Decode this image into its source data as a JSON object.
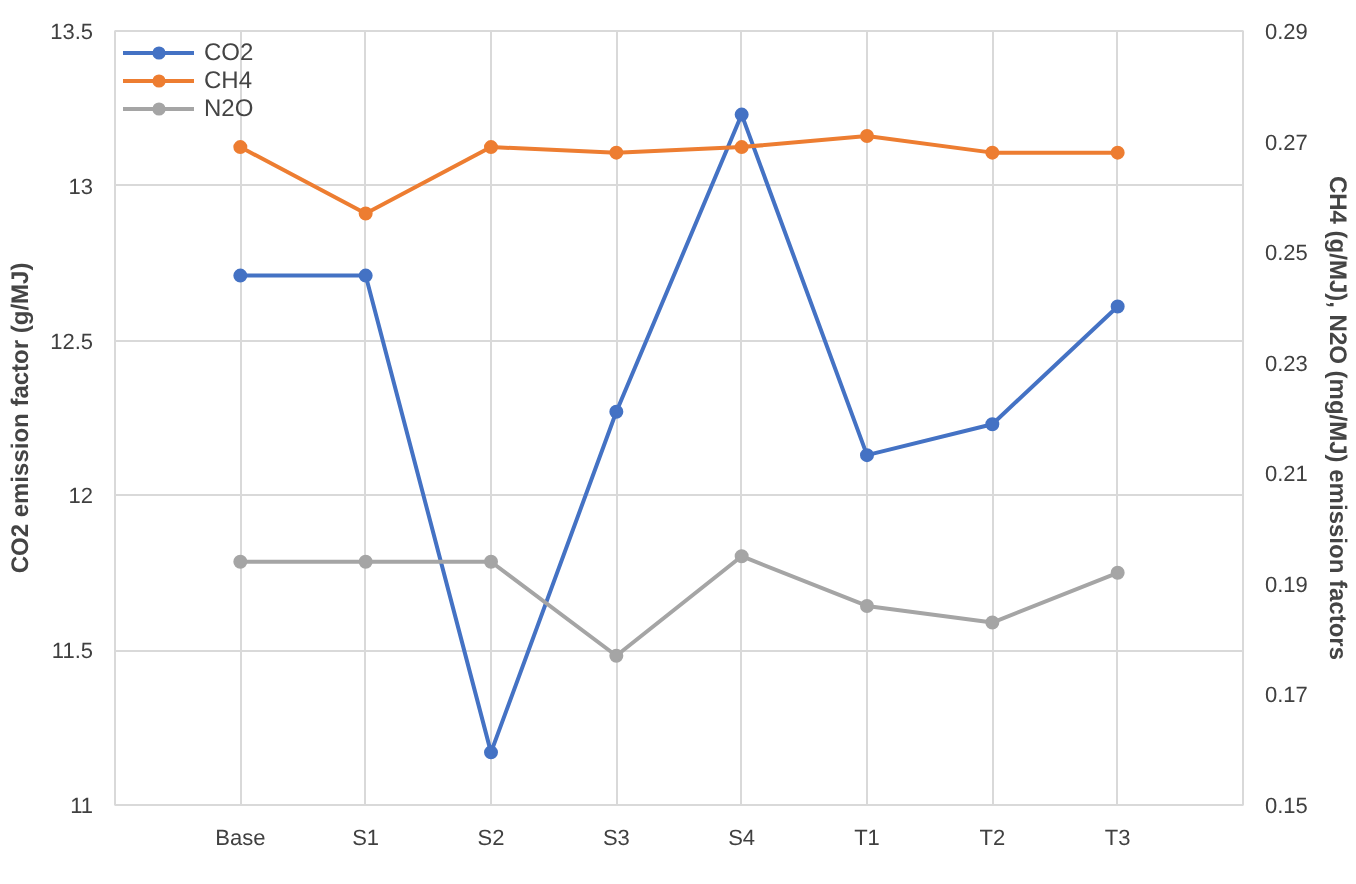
{
  "chart_data": {
    "type": "line",
    "categories": [
      "Base",
      "S1",
      "S2",
      "S3",
      "S4",
      "T1",
      "T2",
      "T3"
    ],
    "ylabel": "CO2 emission factor (g/MJ)",
    "y2label": "CH4 (g/MJ), N2O (mg/MJ) emission factors",
    "ylim": [
      11,
      13.5
    ],
    "yticks": [
      11,
      11.5,
      12,
      12.5,
      13,
      13.5
    ],
    "y2lim": [
      0.15,
      0.29
    ],
    "y2ticks": [
      0.15,
      0.17,
      0.19,
      0.21,
      0.23,
      0.25,
      0.27,
      0.29
    ],
    "grid": true,
    "legend": "top left",
    "marker": "circle",
    "line_style": "solid",
    "series": [
      {
        "name": "CO2",
        "color": "#4472c4",
        "values": [
          12.71,
          12.71,
          11.17,
          12.27,
          13.23,
          12.13,
          12.23,
          12.61
        ]
      },
      {
        "name": "CH4",
        "color": "#ed7d31",
        "axis": "y2",
        "values": [
          0.269,
          0.257,
          0.269,
          0.268,
          0.269,
          0.271,
          0.268,
          0.268
        ]
      },
      {
        "name": "N2O",
        "color": "#a5a5a5",
        "axis": "y2",
        "values": [
          0.194,
          0.194,
          0.194,
          0.177,
          0.195,
          0.186,
          0.183,
          0.192
        ]
      }
    ]
  }
}
